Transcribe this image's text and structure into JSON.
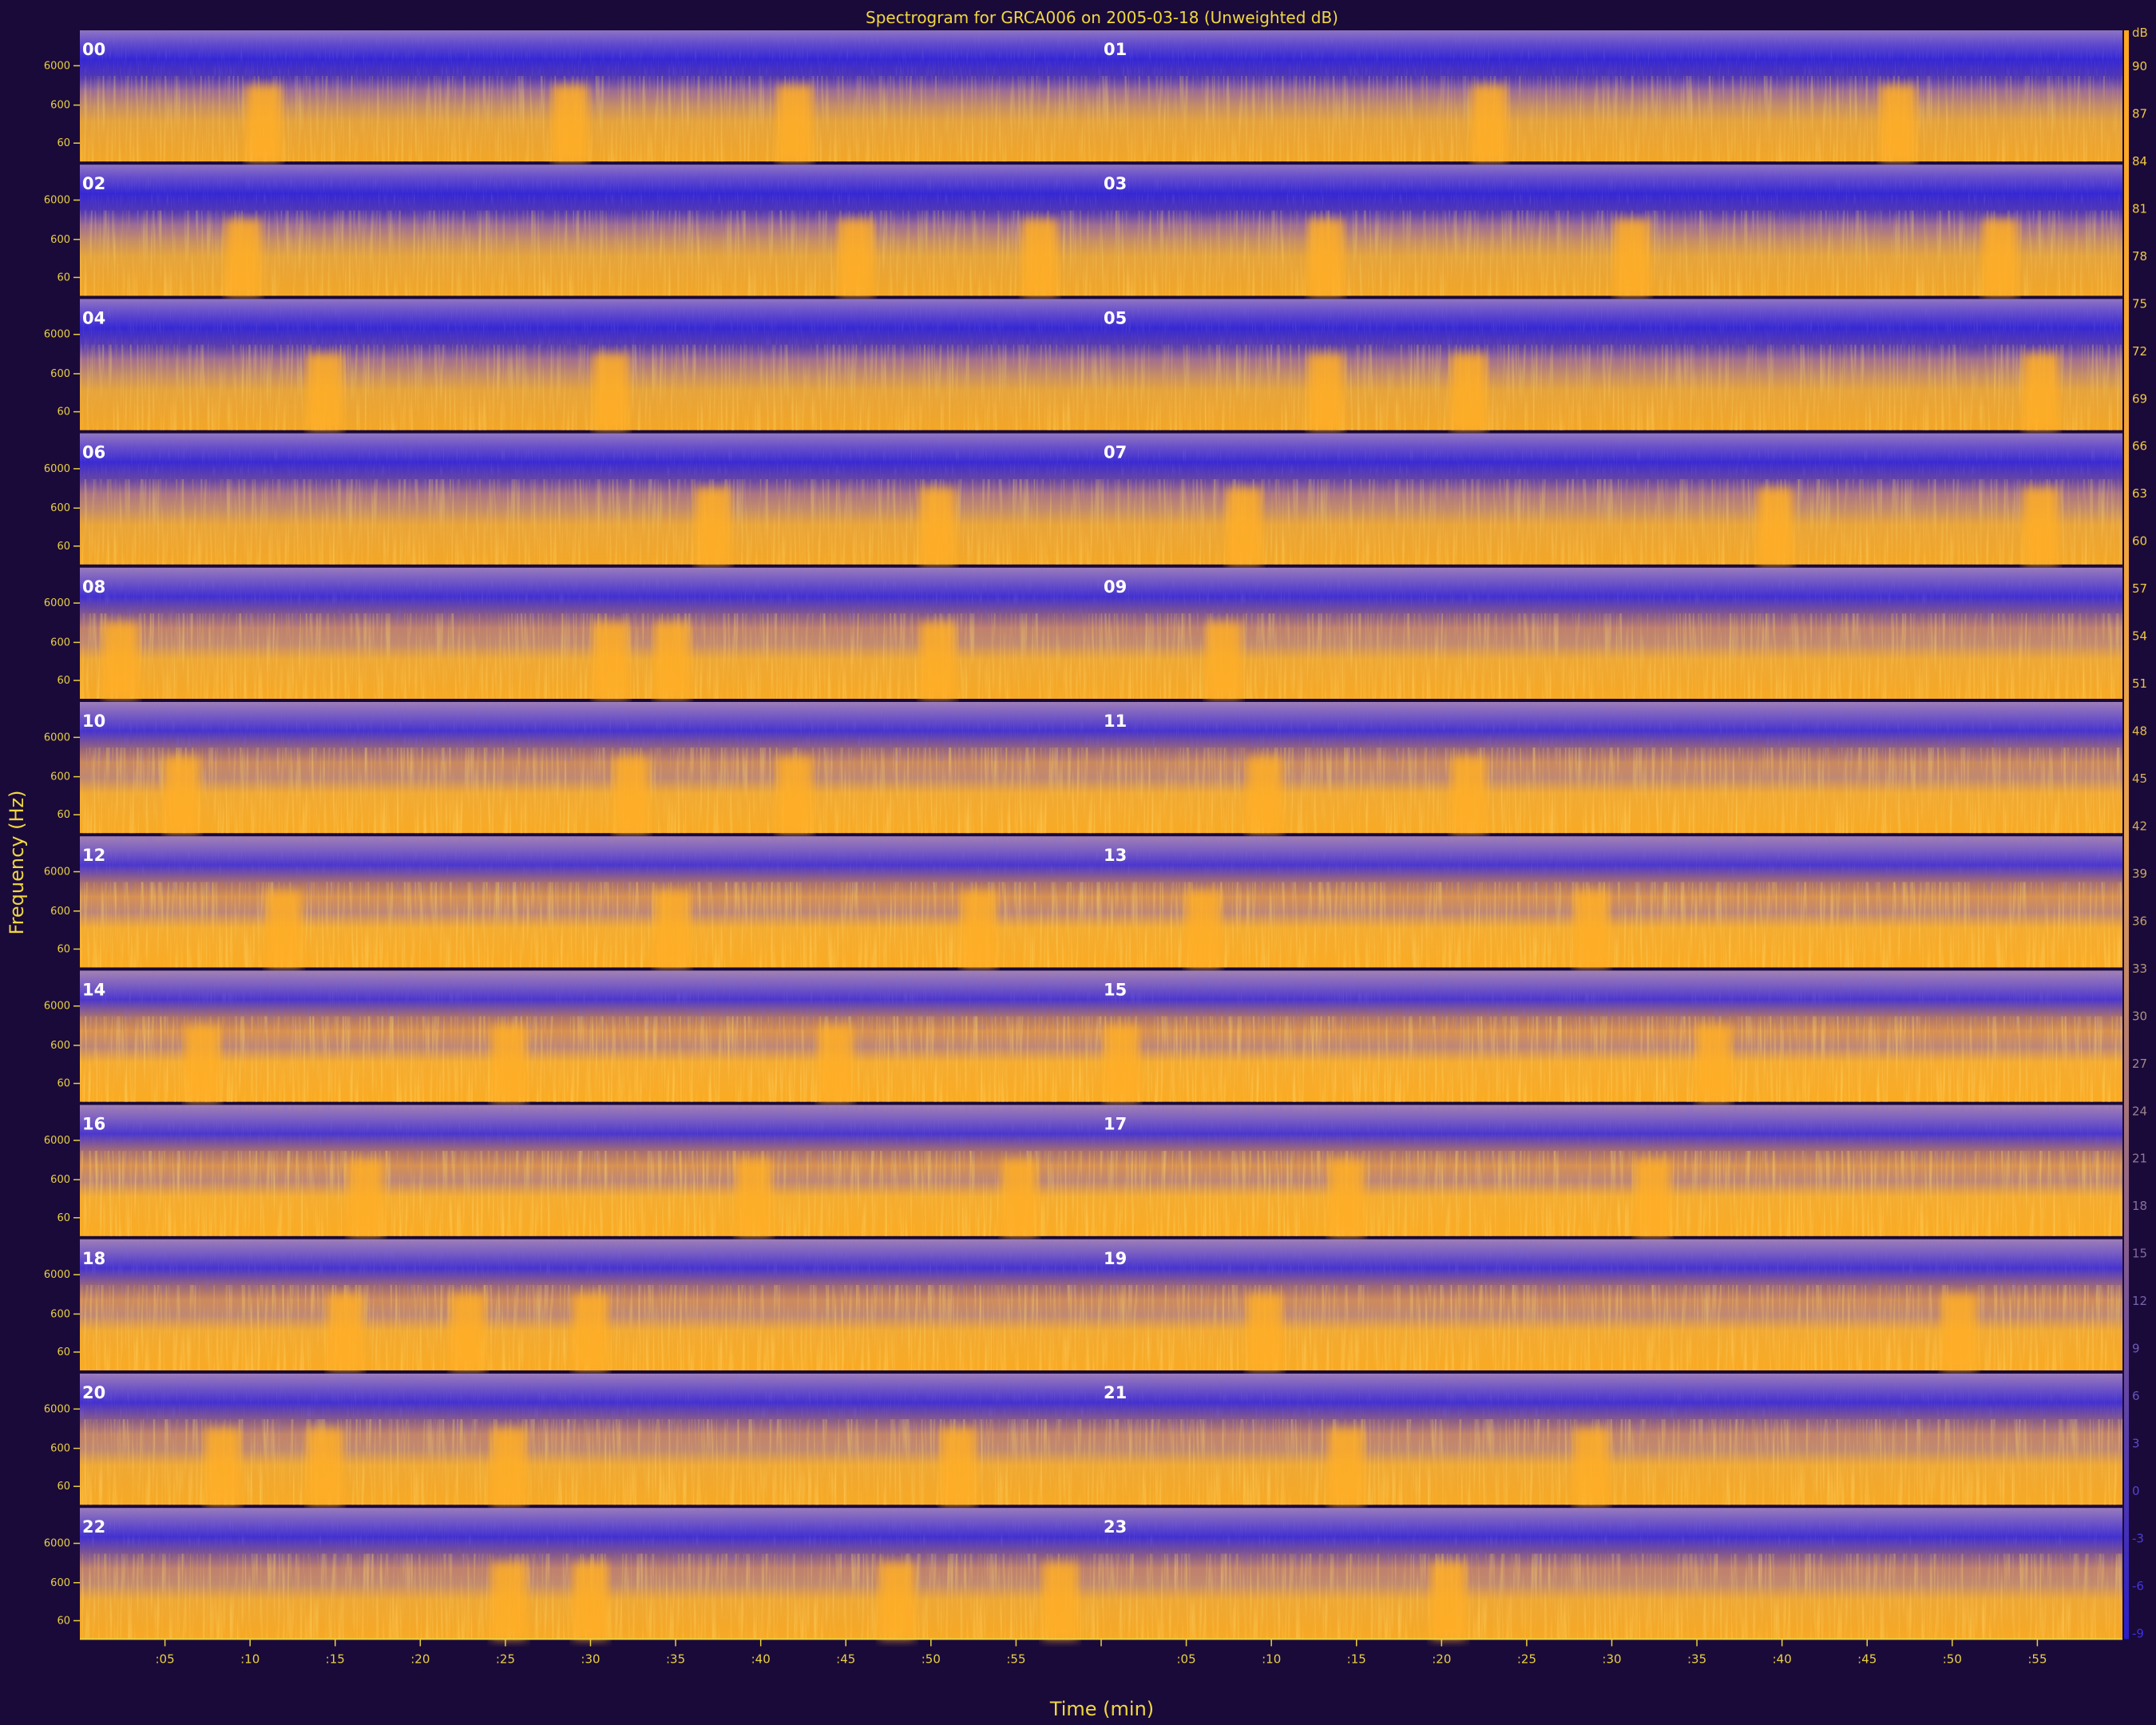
{
  "chart_data": {
    "type": "heatmap",
    "title": "Spectrogram for GRCA006 on 2005-03-18 (Unweighted dB)",
    "xlabel": "Time (min)",
    "ylabel": "Frequency (Hz)",
    "hour_labels": [
      "00",
      "01",
      "02",
      "03",
      "04",
      "05",
      "06",
      "07",
      "08",
      "09",
      "10",
      "11",
      "12",
      "13",
      "14",
      "15",
      "16",
      "17",
      "18",
      "19",
      "20",
      "21",
      "22",
      "23"
    ],
    "y_tick_labels": [
      "6000",
      "600",
      "60"
    ],
    "x_tick_labels": [
      ":05",
      ":10",
      ":15",
      ":20",
      ":25",
      ":30",
      ":35",
      ":40",
      ":45",
      ":50",
      ":55",
      "",
      ":05",
      ":10",
      ":15",
      ":20",
      ":25",
      ":30",
      ":35",
      ":40",
      ":45",
      ":50",
      ":55"
    ],
    "colorbar_unit": "dB",
    "colorbar_labels": [
      "90",
      "87",
      "84",
      "81",
      "78",
      "75",
      "72",
      "69",
      "66",
      "63",
      "60",
      "57",
      "54",
      "51",
      "48",
      "45",
      "42",
      "39",
      "36",
      "33",
      "30",
      "27",
      "24",
      "21",
      "18",
      "15",
      "12",
      "9",
      "6",
      "3",
      "0",
      "-3",
      "-6",
      "-9"
    ],
    "colorbar_range": [
      -9,
      90
    ],
    "colors": {
      "background": "#1a0a3a",
      "low": "#3a2bd0",
      "high": "#ffa820",
      "text": "#f0d840"
    },
    "rows": [
      {
        "hours": [
          "00",
          "01"
        ],
        "level": 0.15,
        "events": [
          0.09,
          0.24,
          0.35,
          0.69,
          0.89
        ]
      },
      {
        "hours": [
          "02",
          "03"
        ],
        "level": 0.16,
        "events": [
          0.08,
          0.38,
          0.47,
          0.61,
          0.76,
          0.94
        ]
      },
      {
        "hours": [
          "04",
          "05"
        ],
        "level": 0.2,
        "events": [
          0.12,
          0.26,
          0.61,
          0.68,
          0.96
        ]
      },
      {
        "hours": [
          "06",
          "07"
        ],
        "level": 0.28,
        "events": [
          0.31,
          0.42,
          0.57,
          0.83,
          0.96
        ]
      },
      {
        "hours": [
          "08",
          "09"
        ],
        "level": 0.45,
        "events": [
          0.02,
          0.26,
          0.29,
          0.42,
          0.56
        ]
      },
      {
        "hours": [
          "10",
          "11"
        ],
        "level": 0.55,
        "events": [
          0.05,
          0.27,
          0.35,
          0.58,
          0.68
        ]
      },
      {
        "hours": [
          "12",
          "13"
        ],
        "level": 0.66,
        "events": [
          0.1,
          0.29,
          0.44,
          0.55,
          0.74
        ]
      },
      {
        "hours": [
          "14",
          "15"
        ],
        "level": 0.68,
        "events": [
          0.06,
          0.21,
          0.37,
          0.51,
          0.8
        ]
      },
      {
        "hours": [
          "16",
          "17"
        ],
        "level": 0.66,
        "events": [
          0.14,
          0.33,
          0.46,
          0.62,
          0.77
        ]
      },
      {
        "hours": [
          "18",
          "19"
        ],
        "level": 0.58,
        "events": [
          0.13,
          0.19,
          0.25,
          0.58,
          0.92
        ]
      },
      {
        "hours": [
          "20",
          "21"
        ],
        "level": 0.48,
        "events": [
          0.07,
          0.12,
          0.21,
          0.43,
          0.62,
          0.74
        ]
      },
      {
        "hours": [
          "22",
          "23"
        ],
        "level": 0.45,
        "events": [
          0.21,
          0.25,
          0.4,
          0.48,
          0.67
        ]
      }
    ]
  }
}
